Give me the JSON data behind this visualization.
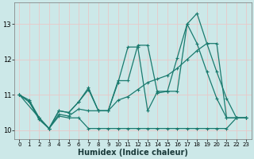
{
  "xlabel": "Humidex (Indice chaleur)",
  "background_color": "#cce8e8",
  "grid_color": "#e8c8c8",
  "line_color": "#1a7a6e",
  "xlim": [
    -0.5,
    23.5
  ],
  "ylim": [
    9.75,
    13.6
  ],
  "yticks": [
    10,
    11,
    12,
    13
  ],
  "xticks": [
    0,
    1,
    2,
    3,
    4,
    5,
    6,
    7,
    8,
    9,
    10,
    11,
    12,
    13,
    14,
    15,
    16,
    17,
    18,
    19,
    20,
    21,
    22,
    23
  ],
  "series": [
    {
      "x": [
        0,
        1,
        2,
        3,
        4,
        5,
        6,
        7,
        8,
        9,
        10,
        11,
        12,
        13,
        14,
        15,
        16,
        17,
        18,
        19,
        20,
        21,
        22,
        23
      ],
      "y": [
        11.0,
        10.85,
        10.35,
        10.05,
        10.4,
        10.35,
        10.35,
        10.05,
        10.05,
        10.05,
        10.05,
        10.05,
        10.05,
        10.05,
        10.05,
        10.05,
        10.05,
        10.05,
        10.05,
        10.05,
        10.05,
        10.05,
        10.35,
        10.35
      ]
    },
    {
      "x": [
        0,
        1,
        2,
        3,
        4,
        5,
        6,
        7,
        8,
        9,
        10,
        11,
        12,
        13,
        14,
        15,
        16,
        17,
        18,
        19,
        20,
        21,
        22,
        23
      ],
      "y": [
        11.0,
        10.8,
        10.3,
        10.05,
        10.45,
        10.4,
        10.6,
        10.55,
        10.55,
        10.55,
        10.85,
        10.95,
        11.15,
        11.35,
        11.45,
        11.55,
        11.75,
        12.0,
        12.25,
        12.45,
        12.45,
        10.35,
        10.35,
        10.35
      ]
    },
    {
      "x": [
        0,
        1,
        2,
        3,
        4,
        5,
        6,
        7,
        8,
        9,
        10,
        11,
        12,
        13,
        14,
        15,
        16,
        17,
        18,
        19,
        20,
        21,
        22,
        23
      ],
      "y": [
        11.0,
        10.8,
        10.35,
        10.05,
        10.55,
        10.5,
        10.8,
        11.15,
        10.55,
        10.55,
        11.35,
        12.35,
        12.35,
        10.55,
        11.1,
        11.1,
        12.05,
        13.0,
        12.45,
        11.65,
        10.9,
        10.35,
        10.35,
        10.35
      ]
    },
    {
      "x": [
        0,
        2,
        3,
        4,
        5,
        6,
        7,
        8,
        9,
        10,
        11,
        12,
        13,
        14,
        15,
        16,
        17,
        18,
        19,
        20,
        21,
        22,
        23
      ],
      "y": [
        11.0,
        10.35,
        10.05,
        10.55,
        10.5,
        10.8,
        11.2,
        10.55,
        10.55,
        11.4,
        11.4,
        12.4,
        12.4,
        11.05,
        11.1,
        11.1,
        13.0,
        13.3,
        12.45,
        11.65,
        10.9,
        10.35,
        10.35
      ]
    }
  ]
}
